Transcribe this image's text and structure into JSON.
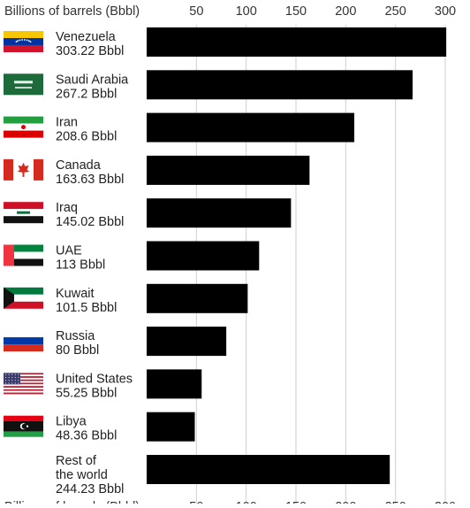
{
  "chart_data": {
    "type": "bar",
    "orientation": "horizontal",
    "axis_label": "Billions of barrels (Bbbl)",
    "xlim": [
      0,
      300
    ],
    "ticks": [
      50,
      100,
      150,
      200,
      250,
      300
    ],
    "grid": true,
    "bar_color": "#000000",
    "categories": [
      {
        "name": "Venezuela",
        "value_label": "303.22 Bbbl",
        "value": 303.22,
        "flag": "venezuela-flag"
      },
      {
        "name": "Saudi Arabia",
        "value_label": "267.2 Bbbl",
        "value": 267.2,
        "flag": "saudi-arabia-flag"
      },
      {
        "name": "Iran",
        "value_label": "208.6 Bbbl",
        "value": 208.6,
        "flag": "iran-flag"
      },
      {
        "name": "Canada",
        "value_label": "163.63 Bbbl",
        "value": 163.63,
        "flag": "canada-flag"
      },
      {
        "name": "Iraq",
        "value_label": "145.02 Bbbl",
        "value": 145.02,
        "flag": "iraq-flag"
      },
      {
        "name": "UAE",
        "value_label": "113 Bbbl",
        "value": 113,
        "flag": "uae-flag"
      },
      {
        "name": "Kuwait",
        "value_label": "101.5 Bbbl",
        "value": 101.5,
        "flag": "kuwait-flag"
      },
      {
        "name": "Russia",
        "value_label": "80 Bbbl",
        "value": 80,
        "flag": "russia-flag"
      },
      {
        "name": "United States",
        "value_label": "55.25 Bbbl",
        "value": 55.25,
        "flag": "united-states-flag"
      },
      {
        "name": "Libya",
        "value_label": "48.36 Bbbl",
        "value": 48.36,
        "flag": "libya-flag"
      },
      {
        "name": "Rest of the world",
        "value_label": "244.23 Bbbl",
        "value": 244.23,
        "flag": null
      }
    ]
  },
  "colors": {
    "bar": "#000000",
    "grid": "#cfcfcf",
    "text": "#222222",
    "axis_text": "#333333"
  }
}
